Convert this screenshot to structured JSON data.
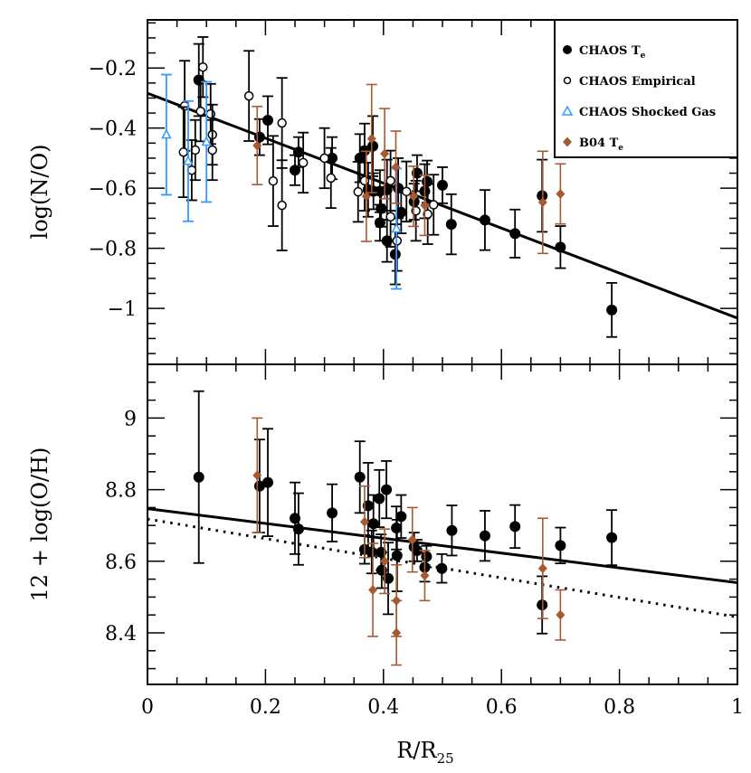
{
  "chart_data": [
    {
      "type": "scatter",
      "panel": "top",
      "ylabel": "log(N/O)",
      "ylim": [
        -1.186,
        -0.04
      ],
      "xlim": [
        0,
        1
      ],
      "yticks": [
        -0.2,
        -0.4,
        -0.6,
        -0.8,
        -1
      ],
      "ytick_labels": [
        "−0.2",
        "−0.4",
        "−0.6",
        "−0.8",
        "−1"
      ],
      "legend_position": "top-right",
      "legend": [
        {
          "name": "CHAOS T",
          "sub": "e",
          "marker": "filled-circle",
          "color": "#000000"
        },
        {
          "name": "CHAOS Empirical",
          "sub": "",
          "marker": "open-circle",
          "color": "#000000"
        },
        {
          "name": "CHAOS Shocked Gas",
          "sub": "",
          "marker": "open-triangle",
          "color": "#3399ff"
        },
        {
          "name": "B04 T",
          "sub": "e",
          "marker": "diamond",
          "color": "#a65a32"
        }
      ],
      "series": [
        {
          "name": "CHAOS Te",
          "marker": "filled-circle",
          "color": "#000000",
          "points": [
            [
              0.087,
              -0.24,
              0.12
            ],
            [
              0.204,
              -0.374,
              0.08
            ],
            [
              0.19,
              -0.43,
              0.06
            ],
            [
              0.256,
              -0.48,
              0.05
            ],
            [
              0.25,
              -0.54,
              0.05
            ],
            [
              0.313,
              -0.5,
              0.07
            ],
            [
              0.36,
              -0.5,
              0.08
            ],
            [
              0.368,
              -0.475,
              0.09
            ],
            [
              0.382,
              -0.46,
              0.1
            ],
            [
              0.374,
              -0.605,
              0.09
            ],
            [
              0.383,
              -0.61,
              0.06
            ],
            [
              0.394,
              -0.61,
              0.07
            ],
            [
              0.406,
              -0.605,
              0.1
            ],
            [
              0.425,
              -0.6,
              0.1
            ],
            [
              0.396,
              -0.668,
              0.06
            ],
            [
              0.394,
              -0.715,
              0.06
            ],
            [
              0.406,
              -0.775,
              0.07
            ],
            [
              0.42,
              -0.82,
              0.1
            ],
            [
              0.43,
              -0.68,
              0.07
            ],
            [
              0.457,
              -0.55,
              0.06
            ],
            [
              0.474,
              -0.578,
              0.07
            ],
            [
              0.47,
              -0.61,
              0.09
            ],
            [
              0.452,
              -0.645,
              0.06
            ],
            [
              0.5,
              -0.59,
              0.06
            ],
            [
              0.515,
              -0.72,
              0.1
            ],
            [
              0.572,
              -0.706,
              0.1
            ],
            [
              0.623,
              -0.751,
              0.08
            ],
            [
              0.669,
              -0.625,
              0.12
            ],
            [
              0.7,
              -0.796,
              0.07
            ],
            [
              0.787,
              -1.005,
              0.09
            ]
          ]
        },
        {
          "name": "CHAOS Empirical",
          "marker": "open-circle",
          "color": "#000000",
          "points": [
            [
              0.094,
              -0.197,
              0.1
            ],
            [
              0.063,
              -0.326,
              0.15
            ],
            [
              0.09,
              -0.344,
              0.1
            ],
            [
              0.107,
              -0.353,
              0.1
            ],
            [
              0.11,
              -0.422,
              0.1
            ],
            [
              0.061,
              -0.48,
              0.15
            ],
            [
              0.081,
              -0.473,
              0.1
            ],
            [
              0.11,
              -0.473,
              0.1
            ],
            [
              0.075,
              -0.54,
              0.1
            ],
            [
              0.172,
              -0.293,
              0.15
            ],
            [
              0.228,
              -0.383,
              0.15
            ],
            [
              0.213,
              -0.576,
              0.15
            ],
            [
              0.228,
              -0.657,
              0.15
            ],
            [
              0.264,
              -0.515,
              0.1
            ],
            [
              0.3,
              -0.5,
              0.1
            ],
            [
              0.311,
              -0.566,
              0.1
            ],
            [
              0.357,
              -0.612,
              0.1
            ],
            [
              0.439,
              -0.611,
              0.1
            ],
            [
              0.485,
              -0.655,
              0.1
            ],
            [
              0.423,
              -0.775,
              0.1
            ],
            [
              0.412,
              -0.695,
              0.1
            ],
            [
              0.455,
              -0.675,
              0.1
            ],
            [
              0.475,
              -0.686,
              0.1
            ],
            [
              0.412,
              -0.575,
              0.1
            ],
            [
              0.368,
              -0.575,
              0.1
            ]
          ]
        },
        {
          "name": "CHAOS Shocked Gas",
          "marker": "open-triangle",
          "color": "#3399ff",
          "points": [
            [
              0.032,
              -0.422,
              0.2
            ],
            [
              0.069,
              -0.51,
              0.2
            ],
            [
              0.1,
              -0.446,
              0.2
            ],
            [
              0.422,
              -0.735,
              0.2
            ]
          ]
        },
        {
          "name": "B04 Te",
          "marker": "diamond",
          "color": "#a65a32",
          "points": [
            [
              0.186,
              -0.458,
              0.13
            ],
            [
              0.38,
              -0.435,
              0.18
            ],
            [
              0.402,
              -0.485,
              0.15
            ],
            [
              0.421,
              -0.53,
              0.12
            ],
            [
              0.371,
              -0.627,
              0.15
            ],
            [
              0.451,
              -0.627,
              0.1
            ],
            [
              0.47,
              -0.657,
              0.1
            ],
            [
              0.67,
              -0.647,
              0.17
            ],
            [
              0.7,
              -0.619,
              0.1
            ]
          ]
        }
      ],
      "fits": [
        {
          "name": "fit",
          "style": "solid",
          "intercept": -0.284,
          "slope": -0.748
        }
      ]
    },
    {
      "type": "scatter",
      "panel": "bottom",
      "xlabel": "R/R",
      "xlabel_sub": "25",
      "ylabel": "12 + log(O/H)",
      "ylim": [
        8.256,
        9.15
      ],
      "xlim": [
        0,
        1
      ],
      "xticks": [
        0,
        0.2,
        0.4,
        0.6,
        0.8,
        1
      ],
      "xtick_labels": [
        "0",
        "0.2",
        "0.4",
        "0.6",
        "0.8",
        "1"
      ],
      "yticks": [
        9,
        8.8,
        8.6,
        8.4
      ],
      "ytick_labels": [
        "9",
        "8.8",
        "8.6",
        "8.4"
      ],
      "series": [
        {
          "name": "CHAOS Te",
          "marker": "filled-circle",
          "color": "#000000",
          "points": [
            [
              0.087,
              8.835,
              0.24
            ],
            [
              0.19,
              8.81,
              0.13
            ],
            [
              0.204,
              8.82,
              0.15
            ],
            [
              0.25,
              8.72,
              0.1
            ],
            [
              0.256,
              8.69,
              0.1
            ],
            [
              0.313,
              8.735,
              0.08
            ],
            [
              0.36,
              8.835,
              0.1
            ],
            [
              0.374,
              8.755,
              0.12
            ],
            [
              0.393,
              8.775,
              0.08
            ],
            [
              0.405,
              8.8,
              0.08
            ],
            [
              0.383,
              8.705,
              0.08
            ],
            [
              0.43,
              8.725,
              0.06
            ],
            [
              0.422,
              8.693,
              0.06
            ],
            [
              0.368,
              8.633,
              0.04
            ],
            [
              0.38,
              8.626,
              0.06
            ],
            [
              0.396,
              8.625,
              0.05
            ],
            [
              0.397,
              8.575,
              0.05
            ],
            [
              0.408,
              8.552,
              0.1
            ],
            [
              0.423,
              8.616,
              0.1
            ],
            [
              0.452,
              8.64,
              0.04
            ],
            [
              0.457,
              8.63,
              0.03
            ],
            [
              0.473,
              8.613,
              0.03
            ],
            [
              0.47,
              8.583,
              0.04
            ],
            [
              0.499,
              8.58,
              0.04
            ],
            [
              0.516,
              8.686,
              0.07
            ],
            [
              0.572,
              8.671,
              0.07
            ],
            [
              0.623,
              8.697,
              0.06
            ],
            [
              0.669,
              8.478,
              0.08
            ],
            [
              0.7,
              8.644,
              0.05
            ],
            [
              0.787,
              8.666,
              0.077
            ]
          ]
        },
        {
          "name": "B04 Te",
          "marker": "diamond",
          "color": "#a65a32",
          "points": [
            [
              0.186,
              8.84,
              0.16
            ],
            [
              0.368,
              8.71,
              0.1
            ],
            [
              0.382,
              8.52,
              0.13
            ],
            [
              0.402,
              8.6,
              0.09
            ],
            [
              0.422,
              8.49,
              0.1
            ],
            [
              0.422,
              8.4,
              0.09
            ],
            [
              0.449,
              8.66,
              0.09
            ],
            [
              0.47,
              8.56,
              0.07
            ],
            [
              0.67,
              8.58,
              0.14
            ],
            [
              0.7,
              8.45,
              0.07
            ]
          ]
        }
      ],
      "fits": [
        {
          "name": "fit-solid",
          "style": "solid",
          "intercept": 8.747,
          "slope": -0.207
        },
        {
          "name": "fit-dotted",
          "style": "dotted",
          "intercept": 8.718,
          "slope": -0.274
        }
      ]
    }
  ]
}
